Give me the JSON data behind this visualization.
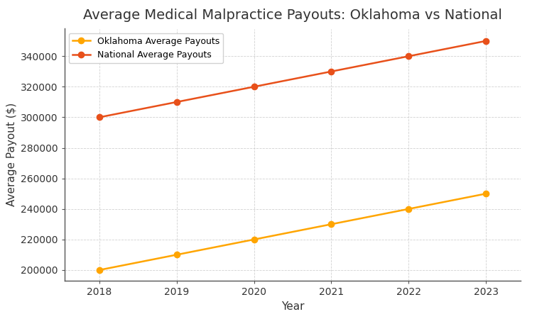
{
  "title": "Average Medical Malpractice Payouts: Oklahoma vs National",
  "xlabel": "Year",
  "ylabel": "Average Payout ($)",
  "years": [
    2018,
    2019,
    2020,
    2021,
    2022,
    2023
  ],
  "oklahoma_values": [
    200000,
    210000,
    220000,
    230000,
    240000,
    250000
  ],
  "national_values": [
    300000,
    310000,
    320000,
    330000,
    340000,
    350000
  ],
  "oklahoma_color": "#FFA500",
  "national_color": "#E8501A",
  "oklahoma_label": "Oklahoma Average Payouts",
  "national_label": "National Average Payouts",
  "background_color": "#FFFFFF",
  "ylim_min": 193000,
  "ylim_max": 358000,
  "title_fontsize": 14,
  "axis_label_fontsize": 11,
  "legend_fontsize": 9,
  "linewidth": 1.8,
  "markersize": 6,
  "tick_labelsize": 10
}
